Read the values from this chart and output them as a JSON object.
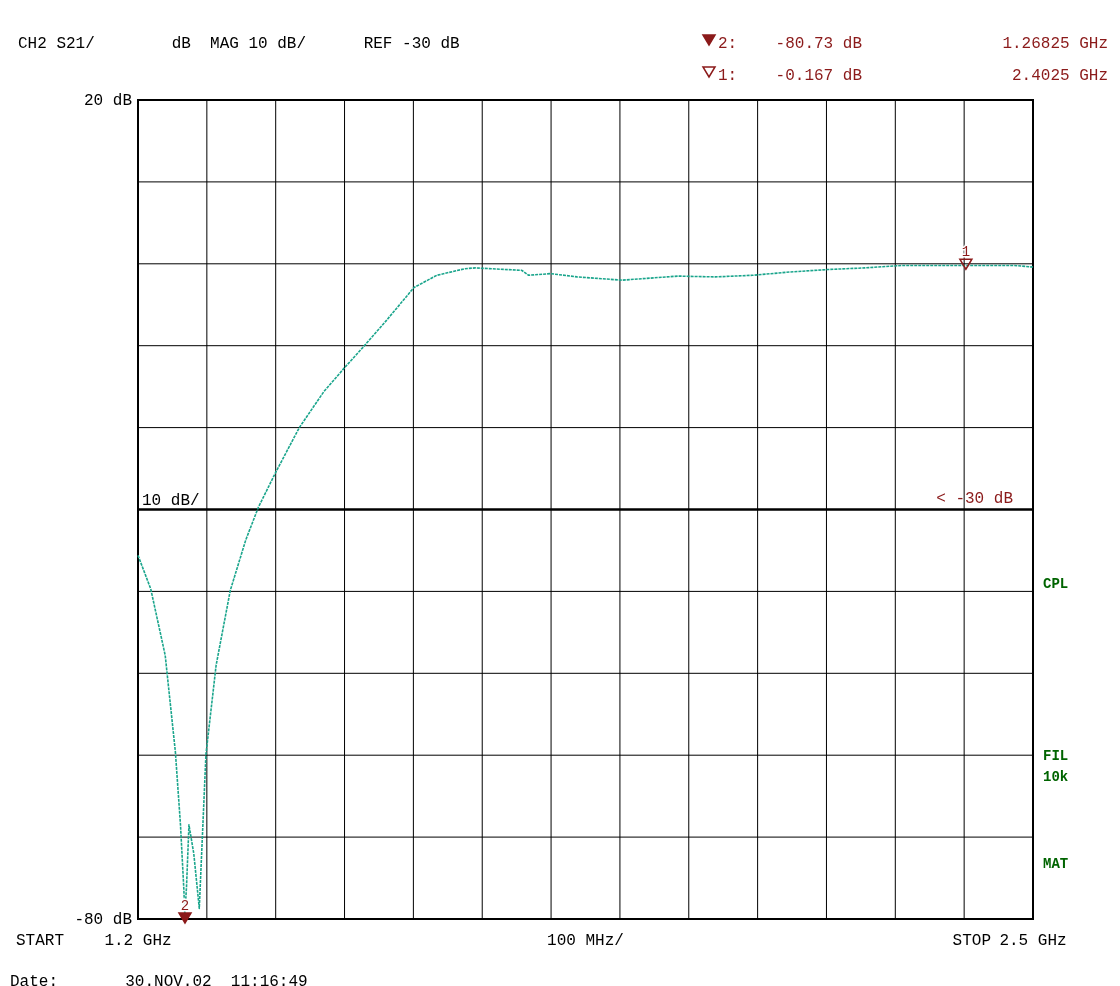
{
  "chart_data": {
    "type": "line",
    "title": "CH2 S21/        dB  MAG 10 dB/      REF -30 dB",
    "xlabel": "100 MHz/",
    "x": [
      1.2,
      1.2185,
      1.2395,
      1.2543,
      1.2617,
      1.2666,
      1.268,
      1.2705,
      1.274,
      1.281,
      1.289,
      1.2987,
      1.3135,
      1.334,
      1.3566,
      1.375,
      1.3998,
      1.4343,
      1.47,
      1.5009,
      1.5268,
      1.56,
      1.6008,
      1.6341,
      1.6748,
      1.69,
      1.7575,
      1.7673,
      1.7994,
      1.8376,
      1.903,
      1.9844,
      2.0387,
      2.0929,
      2.1472,
      2.2015,
      2.2557,
      2.31,
      2.4025,
      2.4728,
      2.5
    ],
    "series": [
      {
        "color": "#1aa58c",
        "line_style": "dashed",
        "values": [
          -35.6,
          -39.7,
          -47.8,
          -59.6,
          -68.5,
          -76.4,
          -79.5,
          -76,
          -68.5,
          -72,
          -78.7,
          -59.9,
          -49,
          -39.9,
          -33.7,
          -29.7,
          -25.5,
          -20,
          -15.6,
          -12.6,
          -10.2,
          -7.0,
          -2.9,
          -1.4,
          -0.6,
          -0.5,
          -0.8,
          -1.4,
          -1.2,
          -1.6,
          -2.0,
          -1.5,
          -1.6,
          -1.4,
          -1.0,
          -0.7,
          -0.5,
          -0.2,
          -0.2,
          -0.2,
          -0.4
        ]
      }
    ],
    "xlim": [
      1.2,
      2.5
    ],
    "xticks": [
      {
        "value": 1.2,
        "label": "1.2 GHz"
      },
      {
        "value": 1.3,
        "label": null
      },
      {
        "value": 1.4,
        "label": null
      },
      {
        "value": 1.5,
        "label": null
      },
      {
        "value": 1.6,
        "label": null
      },
      {
        "value": 1.7,
        "label": null
      },
      {
        "value": 1.8,
        "label": null
      },
      {
        "value": 1.9,
        "label": null
      },
      {
        "value": 2.0,
        "label": null
      },
      {
        "value": 2.1,
        "label": null
      },
      {
        "value": 2.2,
        "label": null
      },
      {
        "value": 2.3,
        "label": null
      },
      {
        "value": 2.4,
        "label": null
      },
      {
        "value": 2.5,
        "label": "2.5 GHz"
      }
    ],
    "ylim": [
      -80,
      20
    ],
    "yticks": [
      {
        "value": 20,
        "label": "20 dB"
      },
      {
        "value": 10,
        "label": null
      },
      {
        "value": 0,
        "label": null
      },
      {
        "value": -10,
        "label": null
      },
      {
        "value": -20,
        "label": null
      },
      {
        "value": -30,
        "label": null
      },
      {
        "value": -40,
        "label": null
      },
      {
        "value": -50,
        "label": null
      },
      {
        "value": -60,
        "label": null
      },
      {
        "value": -70,
        "label": null
      },
      {
        "value": -80,
        "label": "-80 dB"
      }
    ],
    "grid": true,
    "ref_lines": [
      {
        "axis": "y",
        "value": -30,
        "label": "< -30 dB"
      }
    ],
    "annotations": [
      {
        "text": "1",
        "x": 2.4025,
        "y": -0.167
      },
      {
        "text": "2",
        "x": 1.26825,
        "y": -80
      },
      "10 dB/",
      "2:    -80.73 dB",
      "1.26825 GHz",
      "1:    -0.167 dB",
      "2.4025 GHz",
      "CPL",
      "FIL",
      "10k",
      "MAT",
      "Date:       30.NOV.02  11:16:49",
      "START",
      "STOP"
    ]
  }
}
